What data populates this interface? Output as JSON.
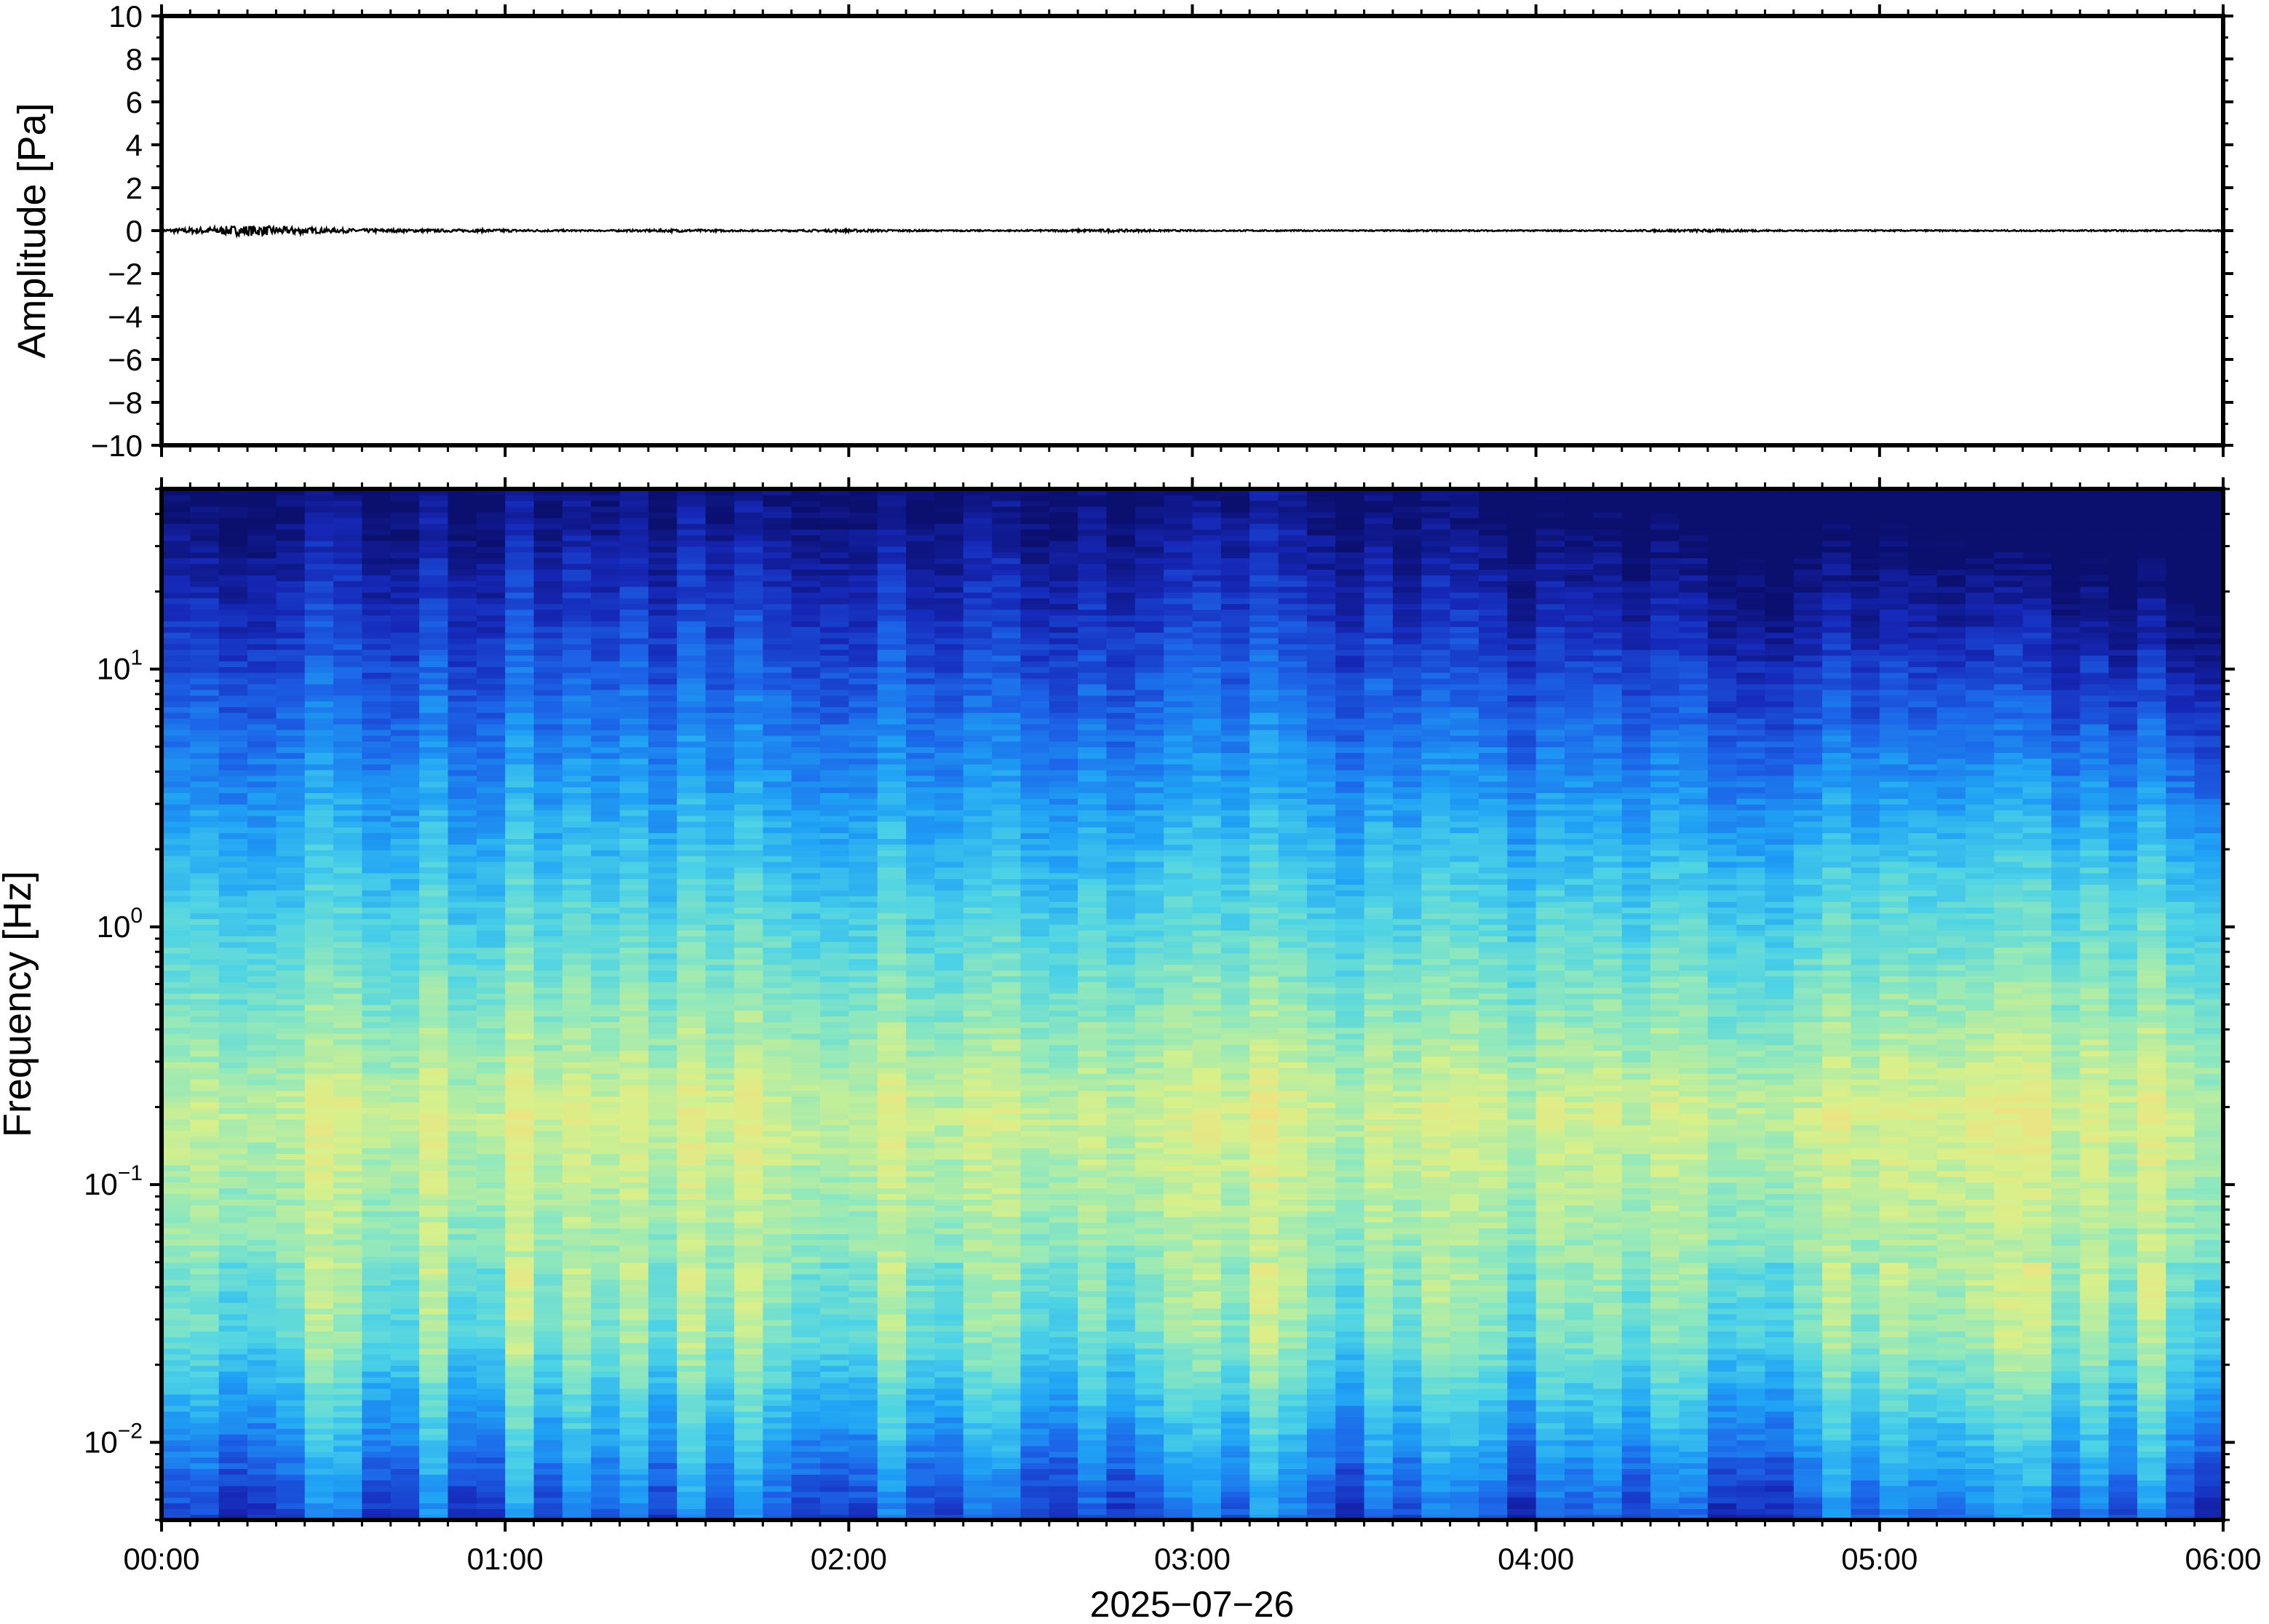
{
  "chart_data": [
    {
      "type": "line",
      "title": "",
      "ylabel": "Amplitude [Pa]",
      "ylim": [
        -10,
        10
      ],
      "yticks": [
        10,
        8,
        6,
        4,
        2,
        0,
        -2,
        -4,
        -6,
        -8,
        -10
      ],
      "ytick_labels": [
        "10",
        "8",
        "6",
        "4",
        "2",
        "0",
        "−2",
        "−4",
        "−6",
        "−8",
        "−10"
      ],
      "xlim_hours": [
        0,
        6
      ],
      "series": [
        {
          "x_hours": [
            0,
            0.25,
            0.5,
            0.75,
            1,
            1.25,
            1.5,
            1.75,
            2,
            2.25,
            2.5,
            2.75,
            3,
            3.25,
            3.5,
            3.75,
            4,
            4.25,
            4.5,
            4.75,
            5,
            5.25,
            5.5,
            5.75,
            6
          ],
          "y": [
            0.02,
            0.08,
            0.03,
            0.02,
            0.02,
            0.01,
            0.02,
            0.01,
            0.02,
            0.01,
            0.01,
            0.02,
            0.01,
            0.01,
            0.01,
            0.01,
            0.01,
            0.01,
            0.02,
            0.01,
            0.01,
            0.01,
            0.01,
            0.01,
            0.01
          ],
          "color": "#000000"
        }
      ],
      "grid": false
    },
    {
      "type": "heatmap",
      "title": "",
      "ylabel": "Frequency [Hz]",
      "xlabel": "2025−07−26",
      "xticks": [
        "00:00",
        "01:00",
        "02:00",
        "03:00",
        "04:00",
        "05:00",
        "06:00"
      ],
      "yscale": "log",
      "ylim_hz": [
        0.005,
        50
      ],
      "ytick_labels": [
        {
          "base": "10",
          "exp": "1",
          "value": 10
        },
        {
          "base": "10",
          "exp": "0",
          "value": 1
        },
        {
          "base": "10",
          "exp": "−1",
          "value": 0.1
        },
        {
          "base": "10",
          "exp": "−2",
          "value": 0.01
        }
      ],
      "colormap": [
        "#0b0f6e",
        "#1628b8",
        "#1c63e8",
        "#1fa2f5",
        "#4dd3e6",
        "#8fe8bd",
        "#d8f08a",
        "#f6dd7c",
        "#f3a266"
      ],
      "spectral_peak_hz": 0.18,
      "grid": false
    }
  ]
}
